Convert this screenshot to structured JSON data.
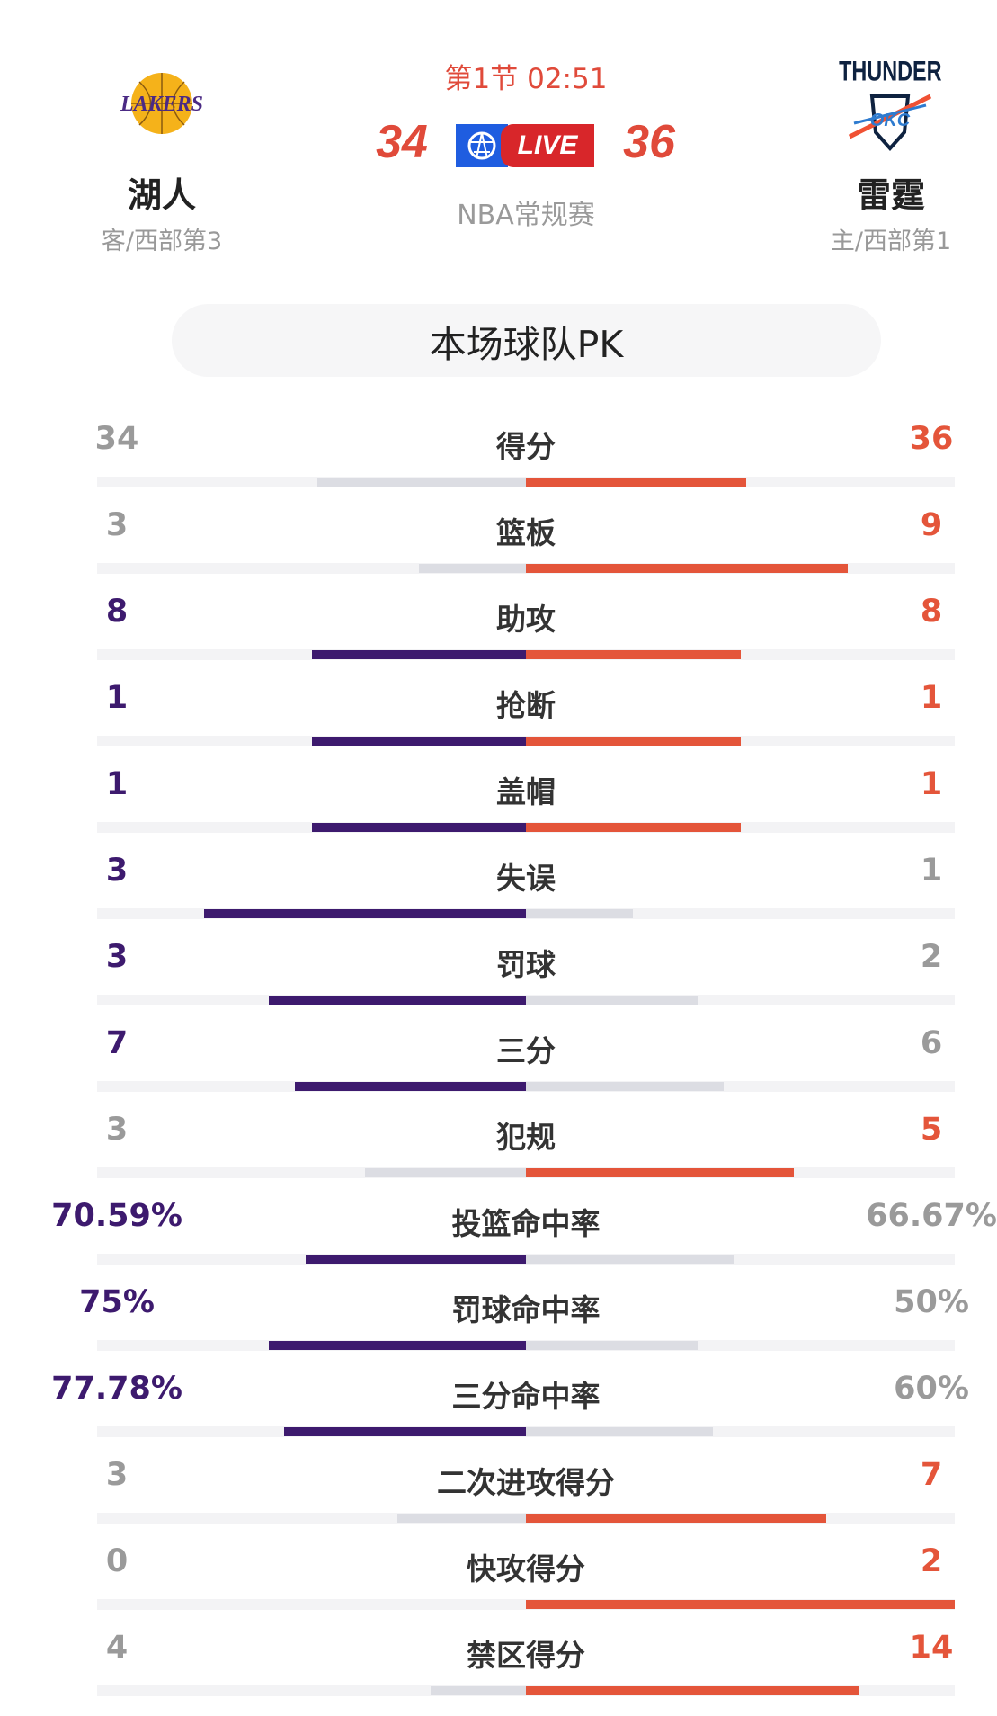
{
  "header": {
    "period_time": "第1节 02:51",
    "live_label": "LIVE",
    "league": "NBA常规赛",
    "away": {
      "name": "湖人",
      "sub": "客/西部第3",
      "score": "34",
      "logo_text": "LAKERS",
      "color": "#3d1a6e"
    },
    "home": {
      "name": "雷霆",
      "sub": "主/西部第1",
      "score": "36",
      "logo_text": "THUNDER OKC",
      "color": "#e4553a"
    }
  },
  "section_title": "本场球队PK",
  "colors": {
    "away": "#3d1a6e",
    "home": "#e4553a",
    "neutral_bar": "#dcdde3",
    "neutral_text": "#9a9a9a"
  },
  "stats": [
    {
      "label": "得分",
      "away": "34",
      "home": "36",
      "a": 34,
      "h": 36
    },
    {
      "label": "篮板",
      "away": "3",
      "home": "9",
      "a": 3,
      "h": 9
    },
    {
      "label": "助攻",
      "away": "8",
      "home": "8",
      "a": 8,
      "h": 8
    },
    {
      "label": "抢断",
      "away": "1",
      "home": "1",
      "a": 1,
      "h": 1
    },
    {
      "label": "盖帽",
      "away": "1",
      "home": "1",
      "a": 1,
      "h": 1
    },
    {
      "label": "失误",
      "away": "3",
      "home": "1",
      "a": 3,
      "h": 1
    },
    {
      "label": "罚球",
      "away": "3",
      "home": "2",
      "a": 3,
      "h": 2
    },
    {
      "label": "三分",
      "away": "7",
      "home": "6",
      "a": 7,
      "h": 6
    },
    {
      "label": "犯规",
      "away": "3",
      "home": "5",
      "a": 3,
      "h": 5
    },
    {
      "label": "投篮命中率",
      "away": "70.59%",
      "home": "66.67%",
      "a": 70.59,
      "h": 66.67
    },
    {
      "label": "罚球命中率",
      "away": "75%",
      "home": "50%",
      "a": 75,
      "h": 50
    },
    {
      "label": "三分命中率",
      "away": "77.78%",
      "home": "60%",
      "a": 77.78,
      "h": 60
    },
    {
      "label": "二次进攻得分",
      "away": "3",
      "home": "7",
      "a": 3,
      "h": 7
    },
    {
      "label": "快攻得分",
      "away": "0",
      "home": "2",
      "a": 0,
      "h": 2
    },
    {
      "label": "禁区得分",
      "away": "4",
      "home": "14",
      "a": 4,
      "h": 14
    }
  ]
}
